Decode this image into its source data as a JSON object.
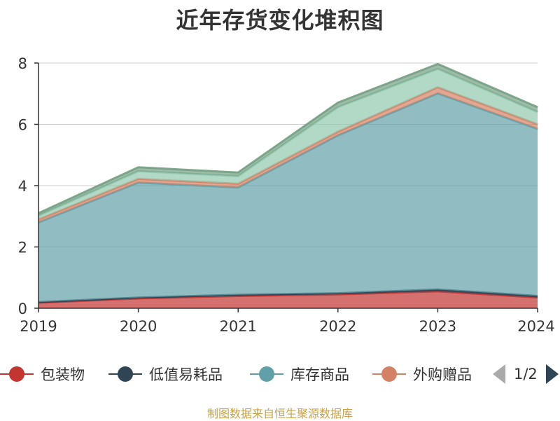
{
  "chart_data": {
    "type": "area",
    "title": "近年存货变化堆积图",
    "categories": [
      "2019",
      "2020",
      "2021",
      "2022",
      "2023",
      "2024"
    ],
    "ylim": [
      0,
      8
    ],
    "yticks": [
      "0",
      "2",
      "4",
      "6",
      "8"
    ],
    "ylabel": "",
    "stacked": true,
    "grid": true,
    "legend_position": "bottom",
    "series": [
      {
        "name": "包装物",
        "color": "#c23531",
        "values": [
          0.18,
          0.32,
          0.4,
          0.45,
          0.55,
          0.35
        ]
      },
      {
        "name": "低值易耗品",
        "color": "#2f4554",
        "values": [
          0.02,
          0.03,
          0.04,
          0.04,
          0.06,
          0.05
        ]
      },
      {
        "name": "库存商品",
        "color": "#61a0a8",
        "values": [
          2.6,
          3.75,
          3.5,
          5.15,
          6.4,
          5.45
        ]
      },
      {
        "name": "外购赠品",
        "color": "#d48265",
        "values": [
          0.1,
          0.12,
          0.12,
          0.12,
          0.2,
          0.15
        ]
      },
      {
        "name": "",
        "color": "#91c7ae",
        "values": [
          0.12,
          0.25,
          0.25,
          0.8,
          0.6,
          0.4
        ]
      },
      {
        "name": "",
        "color": "#749f83",
        "values": [
          0.08,
          0.13,
          0.12,
          0.15,
          0.16,
          0.16
        ]
      }
    ]
  },
  "legend": {
    "page_text": "1/2"
  },
  "source_note": "制图数据来自恒生聚源数据库"
}
